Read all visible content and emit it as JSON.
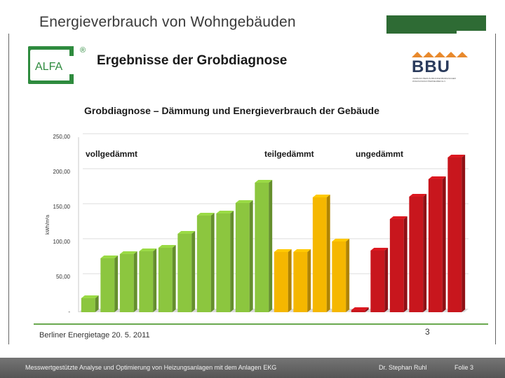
{
  "slide": {
    "title": "Energieverbrauch von Wohngebäuden",
    "header_title": "Ergebnisse der Grobdiagnose",
    "alfa_logo_text": "ALFA",
    "alfa_registered": "®",
    "bbu_logo_text": "BBU",
    "bbu_logo_subtext": "VERBAND BERLIN-BRANDENBURGISCHER WOHNUNGSUNTERNEHMEN E.V.",
    "event": "Berliner Energietage 20. 5. 2011",
    "page_number": "3"
  },
  "footer": {
    "left": "Messwertgestützte Analyse und Optimierung von Heizungsanlagen  mit dem Anlagen EKG",
    "author": "Dr. Stephan Ruhl",
    "slide": "Folie 3"
  },
  "colors": {
    "brand": "#2e6b34",
    "vollgedaemmt": "#8cc63f",
    "teilgedaemmt": "#f5b700",
    "ungedaemmt": "#c8161d"
  },
  "chart_data": {
    "type": "bar",
    "title": "Grobdiagnose – Dämmung und Energieverbrauch der Gebäude",
    "xlabel": "",
    "ylabel": "kWh/m²a",
    "ylim": [
      0,
      250
    ],
    "yticks": [
      0,
      50,
      100,
      150,
      200,
      250
    ],
    "ytick_labels": [
      "-",
      "50,00",
      "100,00",
      "150,00",
      "200,00",
      "250,00"
    ],
    "groups": [
      {
        "name": "vollgedämmt",
        "label": "vollgedämmt",
        "color": "#8cc63f",
        "values": [
          20,
          77,
          83,
          87,
          92,
          112,
          138,
          141,
          156,
          185
        ]
      },
      {
        "name": "teilgedämmt",
        "label": "teilgedämmt",
        "color": "#f5b700",
        "values": [
          86,
          86,
          164,
          101
        ]
      },
      {
        "name": "ungedämmt",
        "label": "ungedämmt",
        "color": "#c8161d",
        "values": [
          3,
          88,
          133,
          165,
          190,
          221
        ]
      }
    ]
  }
}
